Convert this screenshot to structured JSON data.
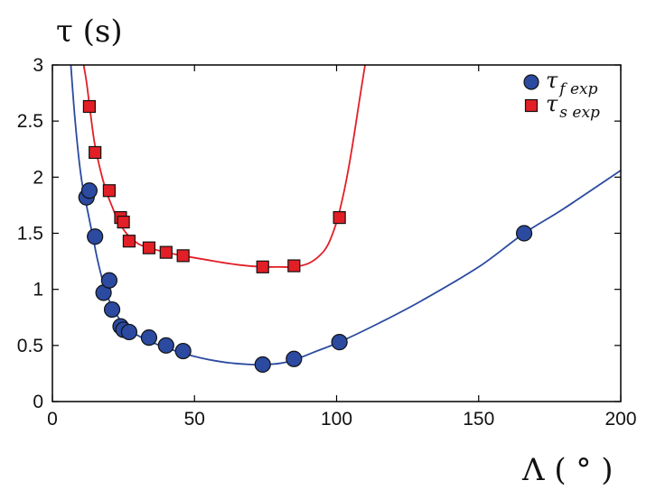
{
  "chart_data": {
    "type": "scatter",
    "ylabel": "τ (s)",
    "xlabel": "Λ ( ° )",
    "xlim": [
      0,
      200
    ],
    "ylim": [
      0,
      3
    ],
    "xticks": [
      "0",
      "50",
      "100",
      "150",
      "200"
    ],
    "yticks": [
      "0",
      "0.5",
      "1",
      "1.5",
      "2",
      "2.5",
      "3"
    ],
    "grid": false,
    "legend_position": "top-right",
    "series": [
      {
        "name": "τf exp",
        "name_main": "τ",
        "name_sub": "f exp",
        "marker": "circle",
        "color": "#2b4aa0",
        "x": [
          12,
          13,
          15,
          18,
          20,
          21,
          24,
          25,
          27,
          34,
          40,
          46,
          74,
          85,
          101,
          166
        ],
        "y": [
          1.82,
          1.88,
          1.47,
          0.97,
          1.08,
          0.82,
          0.67,
          0.64,
          0.62,
          0.57,
          0.5,
          0.45,
          0.33,
          0.38,
          0.53,
          1.5
        ]
      },
      {
        "name": "τs exp",
        "name_main": "τ",
        "name_sub": "s exp",
        "marker": "square",
        "color": "#e21f26",
        "x": [
          13,
          15,
          20,
          24,
          25,
          27,
          34,
          40,
          46,
          74,
          85,
          101
        ],
        "y": [
          2.63,
          2.22,
          1.88,
          1.64,
          1.6,
          1.43,
          1.37,
          1.33,
          1.3,
          1.2,
          1.21,
          1.64
        ]
      }
    ],
    "fit_curves": [
      {
        "color": "#2b4aa0",
        "x": [
          6.5,
          8,
          10,
          12,
          14,
          16,
          18,
          20,
          24,
          28,
          34,
          40,
          46,
          52,
          58,
          64,
          70,
          74,
          80,
          85,
          92,
          101,
          115,
          130,
          150,
          166,
          180,
          200
        ],
        "y": [
          3.0,
          2.5,
          2.02,
          1.75,
          1.5,
          1.25,
          1.05,
          0.9,
          0.72,
          0.62,
          0.54,
          0.48,
          0.43,
          0.39,
          0.36,
          0.34,
          0.33,
          0.33,
          0.34,
          0.37,
          0.44,
          0.53,
          0.7,
          0.9,
          1.2,
          1.5,
          1.72,
          2.06
        ]
      },
      {
        "color": "#e21f26",
        "x": [
          11,
          12,
          13,
          14,
          15,
          17,
          19,
          21,
          23,
          26,
          30,
          34,
          40,
          46,
          55,
          65,
          74,
          80,
          85,
          90,
          94,
          97,
          100,
          102,
          104,
          106,
          108,
          110
        ],
        "y": [
          3.0,
          2.85,
          2.65,
          2.45,
          2.28,
          2.05,
          1.87,
          1.74,
          1.62,
          1.5,
          1.41,
          1.37,
          1.33,
          1.3,
          1.26,
          1.22,
          1.2,
          1.2,
          1.2,
          1.23,
          1.3,
          1.4,
          1.6,
          1.8,
          2.05,
          2.35,
          2.68,
          3.0
        ]
      }
    ]
  }
}
